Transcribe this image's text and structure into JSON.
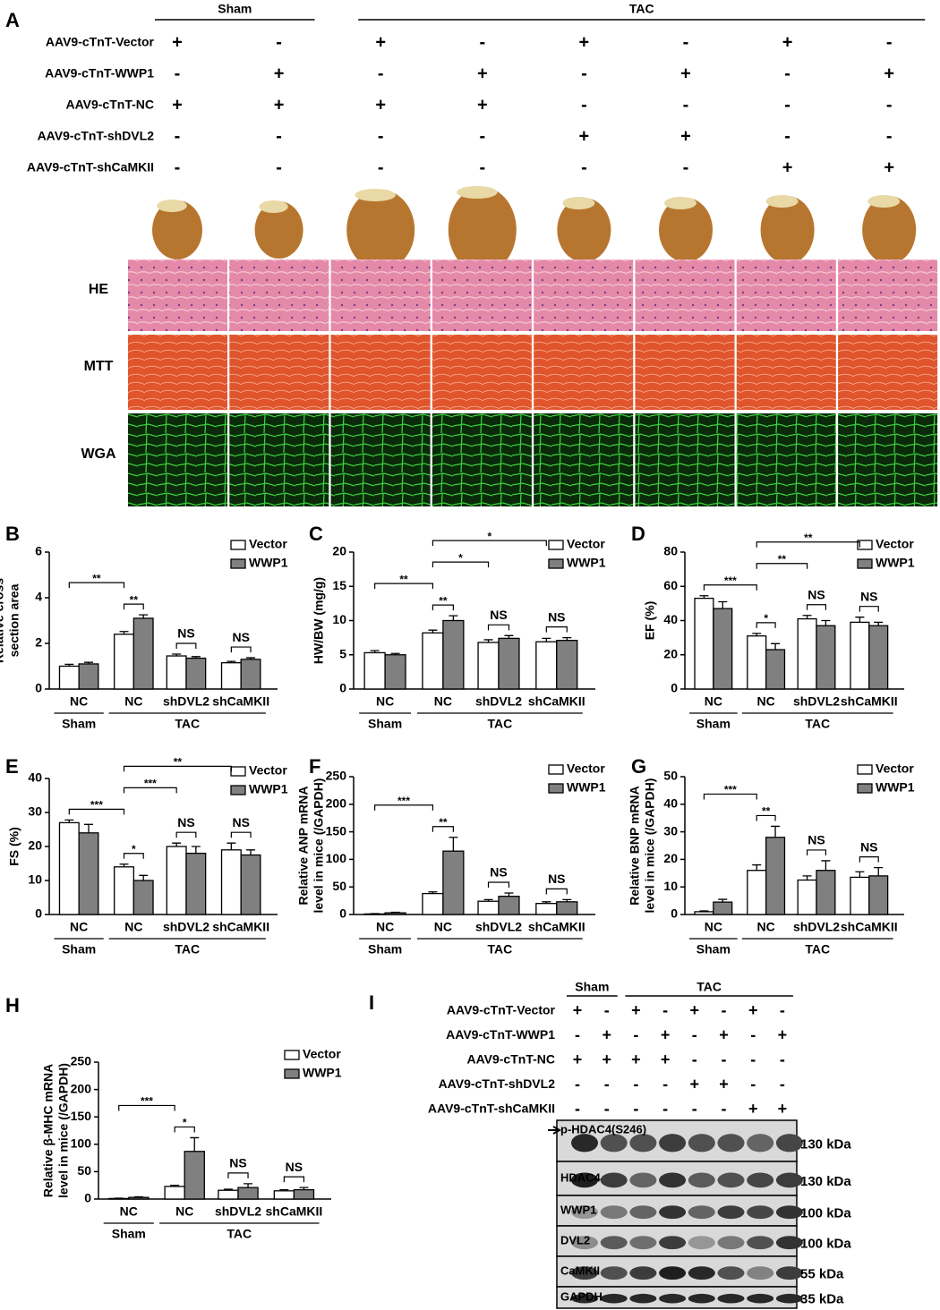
{
  "panel_a": {
    "panel": "A",
    "header": [
      "Sham",
      "TAC"
    ],
    "header_sizes": [
      2,
      6
    ],
    "rows": [
      {
        "label": "AAV9-cTnT-Vector",
        "signs": [
          "+",
          "-",
          "+",
          "-",
          "+",
          "-",
          "+",
          "-"
        ]
      },
      {
        "label": "AAV9-cTnT-WWP1",
        "signs": [
          "-",
          "+",
          "-",
          "+",
          "-",
          "+",
          "-",
          "+"
        ]
      },
      {
        "label": "AAV9-cTnT-NC",
        "signs": [
          "+",
          "+",
          "+",
          "+",
          "-",
          "-",
          "-",
          "-"
        ]
      },
      {
        "label": "AAV9-cTnT-shDVL2",
        "signs": [
          "-",
          "-",
          "-",
          "-",
          "+",
          "+",
          "-",
          "-"
        ]
      },
      {
        "label": "AAV9-cTnT-shCaMKII",
        "signs": [
          "-",
          "-",
          "-",
          "-",
          "-",
          "-",
          "+",
          "+"
        ]
      }
    ],
    "stains": [
      "HE",
      "MTT",
      "WGA"
    ]
  },
  "chart_data": [
    {
      "panel": "B",
      "type": "bar",
      "ylabel": [
        "Relative cross",
        "section area"
      ],
      "categories": [
        "NC",
        "NC",
        "shDVL2",
        "shCaMKII"
      ],
      "group_labels": [
        "Sham",
        "TAC"
      ],
      "group_sizes": [
        1,
        3
      ],
      "series": [
        {
          "name": "Vector",
          "color": "#ffffff",
          "values": [
            1.0,
            2.4,
            1.45,
            1.15
          ],
          "errors": [
            0.08,
            0.12,
            0.08,
            0.06
          ]
        },
        {
          "name": "WWP1",
          "color": "#808080",
          "values": [
            1.1,
            3.1,
            1.35,
            1.3
          ],
          "errors": [
            0.07,
            0.15,
            0.07,
            0.07
          ]
        }
      ],
      "ylim": [
        0,
        6
      ],
      "yticks": [
        0,
        2,
        4,
        6
      ],
      "annotations": [
        {
          "text": "**",
          "from": [
            0,
            0
          ],
          "to": [
            1,
            0
          ]
        },
        {
          "text": "**",
          "from": [
            1,
            0
          ],
          "to": [
            1,
            1
          ]
        },
        {
          "text": "NS",
          "from": [
            2,
            0
          ],
          "to": [
            2,
            1
          ]
        },
        {
          "text": "NS",
          "from": [
            3,
            0
          ],
          "to": [
            3,
            1
          ]
        }
      ]
    },
    {
      "panel": "C",
      "type": "bar",
      "ylabel": [
        "HW/BW (mg/g)"
      ],
      "categories": [
        "NC",
        "NC",
        "shDVL2",
        "shCaMKII"
      ],
      "group_labels": [
        "Sham",
        "TAC"
      ],
      "group_sizes": [
        1,
        3
      ],
      "series": [
        {
          "name": "Vector",
          "color": "#ffffff",
          "values": [
            5.3,
            8.2,
            6.8,
            6.9
          ],
          "errors": [
            0.3,
            0.4,
            0.4,
            0.5
          ]
        },
        {
          "name": "WWP1",
          "color": "#808080",
          "values": [
            5.0,
            10.0,
            7.4,
            7.1
          ],
          "errors": [
            0.2,
            0.7,
            0.4,
            0.4
          ]
        }
      ],
      "ylim": [
        0,
        20
      ],
      "yticks": [
        0,
        5,
        10,
        15,
        20
      ],
      "annotations": [
        {
          "text": "**",
          "from": [
            0,
            0
          ],
          "to": [
            1,
            0
          ]
        },
        {
          "text": "*",
          "from": [
            1,
            0
          ],
          "to": [
            3,
            0
          ]
        },
        {
          "text": "**",
          "from": [
            1,
            0
          ],
          "to": [
            1,
            1
          ]
        },
        {
          "text": "*",
          "from": [
            1,
            0
          ],
          "to": [
            2,
            0
          ]
        },
        {
          "text": "NS",
          "from": [
            2,
            0
          ],
          "to": [
            2,
            1
          ]
        },
        {
          "text": "NS",
          "from": [
            3,
            0
          ],
          "to": [
            3,
            1
          ]
        }
      ]
    },
    {
      "panel": "D",
      "type": "bar",
      "ylabel": [
        "EF (%)"
      ],
      "categories": [
        "NC",
        "NC",
        "shDVL2",
        "shCaMKII"
      ],
      "group_labels": [
        "Sham",
        "TAC"
      ],
      "group_sizes": [
        1,
        3
      ],
      "series": [
        {
          "name": "Vector",
          "color": "#ffffff",
          "values": [
            53,
            31,
            41,
            39
          ],
          "errors": [
            1.5,
            1.5,
            2,
            3
          ]
        },
        {
          "name": "WWP1",
          "color": "#808080",
          "values": [
            47,
            23,
            37,
            37
          ],
          "errors": [
            4,
            3.5,
            3,
            2
          ]
        }
      ],
      "ylim": [
        0,
        80
      ],
      "yticks": [
        0,
        20,
        40,
        60,
        80
      ],
      "annotations": [
        {
          "text": "***",
          "from": [
            0,
            0
          ],
          "to": [
            1,
            0
          ]
        },
        {
          "text": "**",
          "from": [
            1,
            0
          ],
          "to": [
            3,
            0
          ]
        },
        {
          "text": "*",
          "from": [
            1,
            0
          ],
          "to": [
            1,
            1
          ]
        },
        {
          "text": "**",
          "from": [
            1,
            0
          ],
          "to": [
            2,
            0
          ]
        },
        {
          "text": "NS",
          "from": [
            2,
            0
          ],
          "to": [
            2,
            1
          ]
        },
        {
          "text": "NS",
          "from": [
            3,
            0
          ],
          "to": [
            3,
            1
          ]
        }
      ]
    },
    {
      "panel": "E",
      "type": "bar",
      "ylabel": [
        "FS (%)"
      ],
      "categories": [
        "NC",
        "NC",
        "shDVL2",
        "shCaMKII"
      ],
      "group_labels": [
        "Sham",
        "TAC"
      ],
      "group_sizes": [
        1,
        3
      ],
      "series": [
        {
          "name": "Vector",
          "color": "#ffffff",
          "values": [
            27,
            14,
            20,
            19
          ],
          "errors": [
            0.8,
            0.8,
            1,
            2
          ]
        },
        {
          "name": "WWP1",
          "color": "#808080",
          "values": [
            24,
            10,
            18,
            17.5
          ],
          "errors": [
            2.5,
            1.5,
            2,
            1.5
          ]
        }
      ],
      "ylim": [
        0,
        40
      ],
      "yticks": [
        0,
        10,
        20,
        30,
        40
      ],
      "annotations": [
        {
          "text": "***",
          "from": [
            0,
            0
          ],
          "to": [
            1,
            0
          ]
        },
        {
          "text": "**",
          "from": [
            1,
            0
          ],
          "to": [
            3,
            0
          ]
        },
        {
          "text": "*",
          "from": [
            1,
            0
          ],
          "to": [
            1,
            1
          ]
        },
        {
          "text": "***",
          "from": [
            1,
            0
          ],
          "to": [
            2,
            0
          ]
        },
        {
          "text": "NS",
          "from": [
            2,
            0
          ],
          "to": [
            2,
            1
          ]
        },
        {
          "text": "NS",
          "from": [
            3,
            0
          ],
          "to": [
            3,
            1
          ]
        }
      ]
    },
    {
      "panel": "F",
      "type": "bar",
      "ylabel": [
        "Relative ANP mRNA",
        "level in mice (/GAPDH)"
      ],
      "categories": [
        "NC",
        "NC",
        "shDVL2",
        "shCaMKII"
      ],
      "group_labels": [
        "Sham",
        "TAC"
      ],
      "group_sizes": [
        1,
        3
      ],
      "series": [
        {
          "name": "Vector",
          "color": "#ffffff",
          "values": [
            1,
            38,
            24,
            20
          ],
          "errors": [
            0.5,
            3,
            3,
            3
          ]
        },
        {
          "name": "WWP1",
          "color": "#808080",
          "values": [
            3,
            115,
            33,
            23
          ],
          "errors": [
            1,
            25,
            6,
            4
          ]
        }
      ],
      "ylim": [
        0,
        250
      ],
      "yticks": [
        0,
        50,
        100,
        150,
        200,
        250
      ],
      "annotations": [
        {
          "text": "***",
          "from": [
            0,
            0
          ],
          "to": [
            1,
            0
          ]
        },
        {
          "text": "**",
          "from": [
            1,
            0
          ],
          "to": [
            1,
            1
          ]
        },
        {
          "text": "NS",
          "from": [
            2,
            0
          ],
          "to": [
            2,
            1
          ]
        },
        {
          "text": "NS",
          "from": [
            3,
            0
          ],
          "to": [
            3,
            1
          ]
        }
      ]
    },
    {
      "panel": "G",
      "type": "bar",
      "ylabel": [
        "Relative BNP mRNA",
        "level in mice (/GAPDH)"
      ],
      "categories": [
        "NC",
        "NC",
        "shDVL2",
        "shCaMKII"
      ],
      "group_labels": [
        "Sham",
        "TAC"
      ],
      "group_sizes": [
        1,
        3
      ],
      "series": [
        {
          "name": "Vector",
          "color": "#ffffff",
          "values": [
            1,
            16,
            12.5,
            13.5
          ],
          "errors": [
            0.3,
            2,
            1.5,
            2
          ]
        },
        {
          "name": "WWP1",
          "color": "#808080",
          "values": [
            4.5,
            28,
            16,
            14
          ],
          "errors": [
            1,
            4,
            3.5,
            3
          ]
        }
      ],
      "ylim": [
        0,
        50
      ],
      "yticks": [
        0,
        10,
        20,
        30,
        40,
        50
      ],
      "annotations": [
        {
          "text": "***",
          "from": [
            0,
            0
          ],
          "to": [
            1,
            0
          ]
        },
        {
          "text": "**",
          "from": [
            1,
            0
          ],
          "to": [
            1,
            1
          ]
        },
        {
          "text": "NS",
          "from": [
            2,
            0
          ],
          "to": [
            2,
            1
          ]
        },
        {
          "text": "NS",
          "from": [
            3,
            0
          ],
          "to": [
            3,
            1
          ]
        }
      ]
    },
    {
      "panel": "H",
      "type": "bar",
      "ylabel": [
        "Relative β-MHC mRNA",
        "level in mice (/GAPDH)"
      ],
      "categories": [
        "NC",
        "NC",
        "shDVL2",
        "shCaMKII"
      ],
      "group_labels": [
        "Sham",
        "TAC"
      ],
      "group_sizes": [
        1,
        3
      ],
      "series": [
        {
          "name": "Vector",
          "color": "#ffffff",
          "values": [
            1,
            23,
            16,
            15
          ],
          "errors": [
            0.5,
            2,
            2,
            2
          ]
        },
        {
          "name": "WWP1",
          "color": "#808080",
          "values": [
            3,
            87,
            21,
            17
          ],
          "errors": [
            1,
            25,
            7,
            4
          ]
        }
      ],
      "ylim": [
        0,
        250
      ],
      "yticks": [
        0,
        50,
        100,
        150,
        200,
        250
      ],
      "annotations": [
        {
          "text": "***",
          "from": [
            0,
            0
          ],
          "to": [
            1,
            0
          ]
        },
        {
          "text": "*",
          "from": [
            1,
            0
          ],
          "to": [
            1,
            1
          ]
        },
        {
          "text": "NS",
          "from": [
            2,
            0
          ],
          "to": [
            2,
            1
          ]
        },
        {
          "text": "NS",
          "from": [
            3,
            0
          ],
          "to": [
            3,
            1
          ]
        }
      ]
    }
  ],
  "panel_i": {
    "panel": "I",
    "header": [
      "Sham",
      "TAC"
    ],
    "header_sizes": [
      2,
      6
    ],
    "rows": [
      {
        "label": "AAV9-cTnT-Vector",
        "signs": [
          "+",
          "-",
          "+",
          "-",
          "+",
          "-",
          "+",
          "-"
        ]
      },
      {
        "label": "AAV9-cTnT-WWP1",
        "signs": [
          "-",
          "+",
          "-",
          "+",
          "-",
          "+",
          "-",
          "+"
        ]
      },
      {
        "label": "AAV9-cTnT-NC",
        "signs": [
          "+",
          "+",
          "+",
          "+",
          "-",
          "-",
          "-",
          "-"
        ]
      },
      {
        "label": "AAV9-cTnT-shDVL2",
        "signs": [
          "-",
          "-",
          "-",
          "-",
          "+",
          "+",
          "-",
          "-"
        ]
      },
      {
        "label": "AAV9-cTnT-shCaMKII",
        "signs": [
          "-",
          "-",
          "-",
          "-",
          "-",
          "-",
          "+",
          "+"
        ]
      }
    ],
    "blots": [
      {
        "label": "p-HDAC4(S246)",
        "size": "130 kDa"
      },
      {
        "label": "HDAC4",
        "size": "130 kDa"
      },
      {
        "label": "WWP1",
        "size": "100 kDa"
      },
      {
        "label": "DVL2",
        "size": "100 kDa"
      },
      {
        "label": "CaMKII",
        "size": "55 kDa"
      },
      {
        "label": "GAPDH",
        "size": "35 kDa"
      }
    ]
  }
}
